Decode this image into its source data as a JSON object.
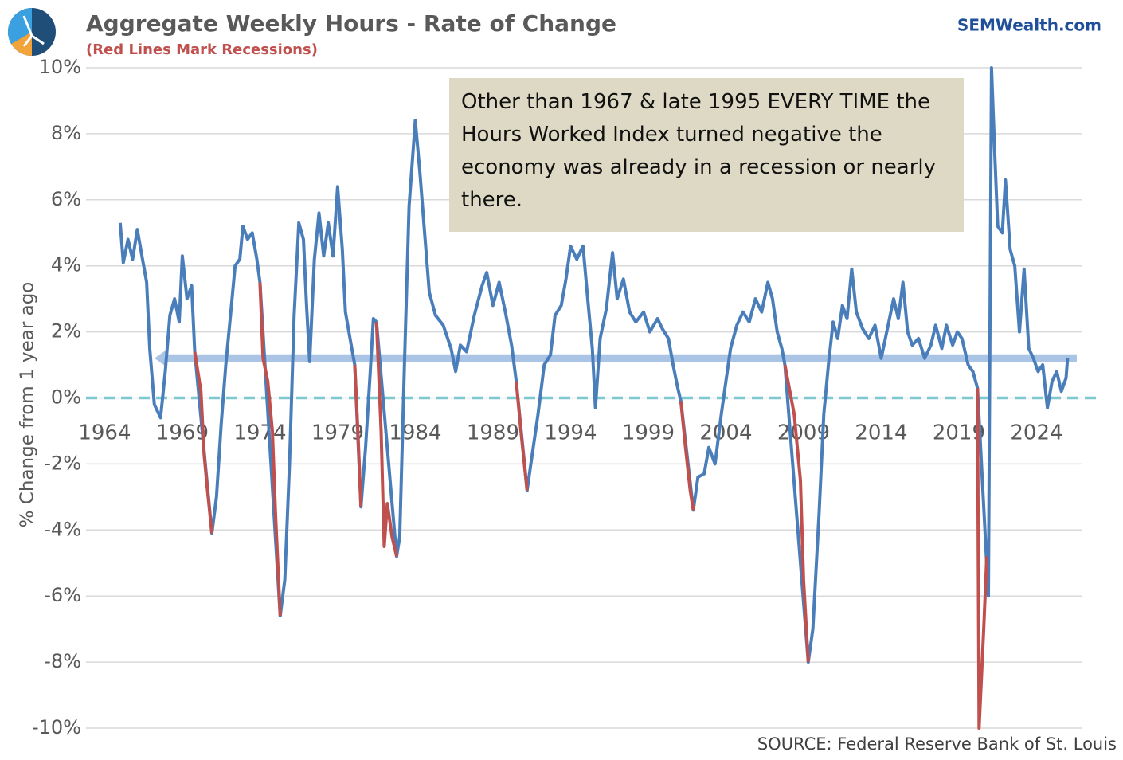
{
  "chart_data": {
    "type": "line",
    "title": "Aggregate Weekly Hours - Rate of Change",
    "subtitle": "(Red Lines Mark Recessions)",
    "brand": "SEMWealth.com",
    "source": "SOURCE:  Federal Reserve Bank of St. Louis",
    "y_label": "% Change from 1 year ago",
    "annotation": "Other than 1967 & late 1995 EVERY TIME the Hours Worked Index turned negative the economy was already in a recession or nearly there.",
    "xlim": [
      1962.8,
      2026.9
    ],
    "xticks": [
      1964,
      1969,
      1974,
      1979,
      1984,
      1989,
      1994,
      1999,
      2004,
      2009,
      2014,
      2019,
      2024
    ],
    "ylim": [
      -10,
      10
    ],
    "yticks": [
      {
        "value": -10,
        "label": "-10%"
      },
      {
        "value": -8,
        "label": "-8%"
      },
      {
        "value": -6,
        "label": "-6%"
      },
      {
        "value": -4,
        "label": "-4%"
      },
      {
        "value": -2,
        "label": "-2%"
      },
      {
        "value": 0,
        "label": "0%"
      },
      {
        "value": 2,
        "label": "2%"
      },
      {
        "value": 4,
        "label": "4%"
      },
      {
        "value": 6,
        "label": "6%"
      },
      {
        "value": 8,
        "label": "8%"
      },
      {
        "value": 10,
        "label": "10%"
      }
    ],
    "grid": true,
    "reference_line": {
      "value": 1.2,
      "color": "#a9c4e4"
    },
    "zero_line": {
      "value": 0,
      "color": "#7fc8cf"
    },
    "series": [
      {
        "color": "#4a7ebb",
        "x": [
          1965.0,
          1965.2,
          1965.5,
          1965.8,
          1966.1,
          1966.4,
          1966.7,
          1966.9,
          1967.2,
          1967.6,
          1967.9,
          1968.2,
          1968.5,
          1968.8,
          1969.0,
          1969.3,
          1969.6,
          1969.8,
          1970.9,
          1971.2,
          1971.5,
          1971.8,
          1972.1,
          1972.4,
          1972.7,
          1972.9,
          1973.2,
          1973.5,
          1973.8,
          1974.0,
          1975.3,
          1975.6,
          1975.9,
          1976.2,
          1976.5,
          1976.8,
          1977.0,
          1977.2,
          1977.5,
          1977.8,
          1978.1,
          1978.4,
          1978.7,
          1979.0,
          1979.3,
          1979.5,
          1979.8,
          1980.1,
          1980.5,
          1980.8,
          1981.1,
          1981.3,
          1981.5,
          1982.8,
          1983.0,
          1983.3,
          1983.6,
          1984.0,
          1984.3,
          1984.6,
          1984.9,
          1985.3,
          1985.8,
          1986.3,
          1986.6,
          1986.9,
          1987.3,
          1987.8,
          1988.3,
          1988.6,
          1989.0,
          1989.4,
          1989.8,
          1990.2,
          1990.5,
          1991.2,
          1991.5,
          1991.9,
          1992.3,
          1992.7,
          1993.0,
          1993.4,
          1993.7,
          1994.0,
          1994.4,
          1994.8,
          1995.1,
          1995.4,
          1995.6,
          1995.9,
          1996.3,
          1996.7,
          1997.0,
          1997.4,
          1997.8,
          1998.2,
          1998.7,
          1999.1,
          1999.6,
          1999.9,
          2000.3,
          2000.6,
          2000.9,
          2001.1,
          2001.9,
          2002.2,
          2002.6,
          2002.9,
          2003.3,
          2003.7,
          2004.0,
          2004.3,
          2004.7,
          2005.1,
          2005.5,
          2005.9,
          2006.3,
          2006.7,
          2007.0,
          2007.3,
          2007.6,
          2007.8,
          2009.3,
          2009.6,
          2010.0,
          2010.3,
          2010.6,
          2010.9,
          2011.2,
          2011.5,
          2011.8,
          2012.1,
          2012.4,
          2012.8,
          2013.2,
          2013.6,
          2014.0,
          2014.4,
          2014.8,
          2015.1,
          2015.4,
          2015.7,
          2016.0,
          2016.4,
          2016.8,
          2017.2,
          2017.5,
          2017.9,
          2018.2,
          2018.6,
          2018.9,
          2019.2,
          2019.6,
          2019.9,
          2020.2,
          2020.9,
          2021.1,
          2021.3,
          2021.5,
          2021.8,
          2022.0,
          2022.3,
          2022.6,
          2022.9,
          2023.2,
          2023.5,
          2023.8,
          2024.1,
          2024.4,
          2024.7,
          2025.0,
          2025.3,
          2025.6,
          2025.9,
          2026.0
        ],
        "values": [
          5.3,
          4.1,
          4.8,
          4.2,
          5.1,
          4.3,
          3.5,
          1.5,
          -0.2,
          -0.6,
          0.8,
          2.5,
          3.0,
          2.3,
          4.3,
          3.0,
          3.4,
          1.4,
          -4.1,
          -3.0,
          -0.8,
          1.0,
          2.5,
          4.0,
          4.2,
          5.2,
          4.8,
          5.0,
          4.2,
          3.5,
          -6.6,
          -5.5,
          -2.0,
          2.5,
          5.3,
          4.8,
          2.8,
          1.1,
          4.2,
          5.6,
          4.3,
          5.3,
          4.3,
          6.4,
          4.5,
          2.6,
          1.8,
          1.0,
          -3.3,
          -1.5,
          0.8,
          2.4,
          2.3,
          -4.8,
          -4.2,
          1.0,
          5.8,
          8.4,
          6.8,
          5.0,
          3.2,
          2.5,
          2.2,
          1.5,
          0.8,
          1.6,
          1.4,
          2.5,
          3.4,
          3.8,
          2.8,
          3.5,
          2.6,
          1.6,
          0.5,
          -2.8,
          -1.8,
          -0.5,
          1.0,
          1.3,
          2.5,
          2.8,
          3.6,
          4.6,
          4.2,
          4.6,
          3.0,
          1.5,
          -0.3,
          1.8,
          2.7,
          4.4,
          3.0,
          3.6,
          2.6,
          2.3,
          2.6,
          2.0,
          2.4,
          2.1,
          1.8,
          1.0,
          0.3,
          -0.1,
          -3.4,
          -2.4,
          -2.3,
          -1.5,
          -2.0,
          -0.5,
          0.5,
          1.5,
          2.2,
          2.6,
          2.3,
          3.0,
          2.6,
          3.5,
          3.0,
          2.0,
          1.5,
          1.0,
          -8.0,
          -7.0,
          -3.5,
          -0.5,
          1.0,
          2.3,
          1.8,
          2.8,
          2.4,
          3.9,
          2.6,
          2.1,
          1.8,
          2.2,
          1.2,
          2.1,
          3.0,
          2.4,
          3.5,
          2.0,
          1.6,
          1.8,
          1.2,
          1.6,
          2.2,
          1.5,
          2.2,
          1.6,
          2.0,
          1.8,
          1.0,
          0.8,
          0.3,
          -6.0,
          10.0,
          7.5,
          5.2,
          5.0,
          6.6,
          4.5,
          4.0,
          2.0,
          3.9,
          1.5,
          1.2,
          0.8,
          1.0,
          -0.3,
          0.5,
          0.8,
          0.2,
          0.6,
          1.2
        ]
      },
      {
        "color": "#c0504d",
        "x": [
          1969.8,
          1970.2,
          1970.4,
          1970.6,
          1970.9,
          null,
          1974.0,
          1974.2,
          1974.5,
          1974.8,
          1975.0,
          1975.3,
          null,
          1980.1,
          1980.3,
          1980.5,
          null,
          1981.5,
          1981.8,
          1982.0,
          1982.2,
          1982.5,
          1982.8,
          null,
          1990.5,
          1990.8,
          1991.2,
          null,
          2001.1,
          2001.4,
          2001.7,
          2001.9,
          null,
          2007.8,
          2008.4,
          2008.8,
          2009.0,
          2009.3,
          null,
          2020.2,
          2020.3,
          2020.6,
          2020.8
        ],
        "values": [
          1.4,
          0.2,
          -1.7,
          -2.7,
          -4.1,
          null,
          3.5,
          1.2,
          0.5,
          -1.0,
          -3.5,
          -6.6,
          null,
          1.0,
          -1.0,
          -3.3,
          null,
          2.3,
          -1.0,
          -4.5,
          -3.2,
          -4.2,
          -4.8,
          null,
          0.5,
          -1.0,
          -2.8,
          null,
          -0.1,
          -1.5,
          -2.8,
          -3.4,
          null,
          1.0,
          -0.5,
          -2.5,
          -5.5,
          -8.0,
          null,
          0.3,
          -10.0,
          -7.0,
          -4.8
        ]
      }
    ]
  }
}
